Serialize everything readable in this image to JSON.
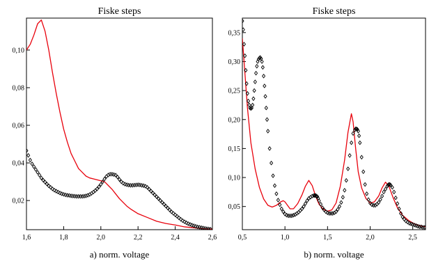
{
  "chart_data": [
    {
      "type": "line",
      "title": "Fiske steps",
      "xlabel": "a)   norm. voltage",
      "ylabel": "",
      "xlim": [
        1.6,
        2.6
      ],
      "ylim": [
        0.0045,
        0.117
      ],
      "xticks": [
        {
          "value": 1.6,
          "label": "1,6"
        },
        {
          "value": 1.8,
          "label": "1,8"
        },
        {
          "value": 2.0,
          "label": "2,0"
        },
        {
          "value": 2.2,
          "label": "2,2"
        },
        {
          "value": 2.4,
          "label": "2,4"
        },
        {
          "value": 2.6,
          "label": "2,6"
        }
      ],
      "yticks": [
        {
          "value": 0.02,
          "label": "0,02"
        },
        {
          "value": 0.04,
          "label": "0,04"
        },
        {
          "value": 0.06,
          "label": "0,06"
        },
        {
          "value": 0.08,
          "label": "0,08"
        },
        {
          "value": 0.1,
          "label": "0,10"
        }
      ],
      "series": [
        {
          "style": "line",
          "color": "#e8000b",
          "x": [
            1.6,
            1.62,
            1.64,
            1.66,
            1.68,
            1.7,
            1.72,
            1.74,
            1.76,
            1.78,
            1.8,
            1.82,
            1.84,
            1.86,
            1.88,
            1.9,
            1.92,
            1.94,
            1.96,
            1.98,
            2.0,
            2.02,
            2.04,
            2.06,
            2.08,
            2.1,
            2.12,
            2.14,
            2.16,
            2.2,
            2.25,
            2.3,
            2.35,
            2.4,
            2.45,
            2.5,
            2.55,
            2.6
          ],
          "y": [
            0.1,
            0.103,
            0.108,
            0.114,
            0.116,
            0.11,
            0.1,
            0.088,
            0.077,
            0.067,
            0.058,
            0.051,
            0.045,
            0.041,
            0.037,
            0.035,
            0.033,
            0.032,
            0.0315,
            0.031,
            0.0305,
            0.03,
            0.028,
            0.026,
            0.0235,
            0.021,
            0.019,
            0.017,
            0.0155,
            0.013,
            0.011,
            0.009,
            0.0078,
            0.007,
            0.006,
            0.0055,
            0.005,
            0.0048
          ]
        },
        {
          "style": "markers",
          "color": "#000000",
          "x": [
            1.6,
            1.61,
            1.62,
            1.63,
            1.64,
            1.65,
            1.66,
            1.67,
            1.68,
            1.69,
            1.7,
            1.71,
            1.72,
            1.73,
            1.74,
            1.75,
            1.76,
            1.77,
            1.78,
            1.79,
            1.8,
            1.81,
            1.82,
            1.83,
            1.84,
            1.85,
            1.86,
            1.87,
            1.88,
            1.89,
            1.9,
            1.91,
            1.92,
            1.93,
            1.94,
            1.95,
            1.96,
            1.97,
            1.98,
            1.99,
            2.0,
            2.01,
            2.02,
            2.03,
            2.04,
            2.05,
            2.06,
            2.07,
            2.08,
            2.09,
            2.1,
            2.11,
            2.12,
            2.13,
            2.14,
            2.15,
            2.16,
            2.17,
            2.18,
            2.19,
            2.2,
            2.21,
            2.22,
            2.23,
            2.24,
            2.25,
            2.26,
            2.27,
            2.28,
            2.29,
            2.3,
            2.31,
            2.32,
            2.33,
            2.34,
            2.35,
            2.36,
            2.37,
            2.38,
            2.39,
            2.4,
            2.41,
            2.42,
            2.43,
            2.44,
            2.45,
            2.46,
            2.47,
            2.48,
            2.49,
            2.5,
            2.51,
            2.52,
            2.53,
            2.54,
            2.55,
            2.56,
            2.57,
            2.58,
            2.59
          ],
          "y": [
            0.0465,
            0.044,
            0.0415,
            0.0395,
            0.038,
            0.0365,
            0.035,
            0.0335,
            0.032,
            0.0308,
            0.0298,
            0.0288,
            0.0278,
            0.027,
            0.0262,
            0.0255,
            0.025,
            0.0245,
            0.024,
            0.0236,
            0.0233,
            0.023,
            0.0228,
            0.0227,
            0.0225,
            0.0224,
            0.0223,
            0.0222,
            0.0222,
            0.0222,
            0.0222,
            0.0223,
            0.0225,
            0.0228,
            0.0232,
            0.0238,
            0.0245,
            0.0253,
            0.0262,
            0.0273,
            0.0286,
            0.03,
            0.0315,
            0.0328,
            0.0336,
            0.034,
            0.034,
            0.0338,
            0.0335,
            0.0325,
            0.0312,
            0.03,
            0.0292,
            0.0287,
            0.0284,
            0.0282,
            0.0281,
            0.0281,
            0.0282,
            0.0283,
            0.0284,
            0.0283,
            0.0281,
            0.0279,
            0.0276,
            0.027,
            0.026,
            0.025,
            0.024,
            0.023,
            0.022,
            0.021,
            0.02,
            0.019,
            0.018,
            0.017,
            0.016,
            0.015,
            0.014,
            0.0132,
            0.0124,
            0.0116,
            0.0108,
            0.01,
            0.0093,
            0.0087,
            0.0082,
            0.0077,
            0.0073,
            0.0069,
            0.0066,
            0.0063,
            0.006,
            0.0058,
            0.0056,
            0.0054,
            0.0052,
            0.005,
            0.0049,
            0.0048
          ]
        }
      ]
    },
    {
      "type": "line",
      "title": "Fiske steps",
      "xlabel": "b)   norm. voltage",
      "ylabel": "",
      "xlim": [
        0.5,
        2.65
      ],
      "ylim": [
        0.01,
        0.375
      ],
      "xticks": [
        {
          "value": 0.5,
          "label": "0,5"
        },
        {
          "value": 1.0,
          "label": "1,0"
        },
        {
          "value": 1.5,
          "label": "1,5"
        },
        {
          "value": 2.0,
          "label": "2,0"
        },
        {
          "value": 2.5,
          "label": "2,5"
        }
      ],
      "yticks": [
        {
          "value": 0.05,
          "label": "0,05"
        },
        {
          "value": 0.1,
          "label": "0,10"
        },
        {
          "value": 0.15,
          "label": "0,15"
        },
        {
          "value": 0.2,
          "label": "0,20"
        },
        {
          "value": 0.25,
          "label": "0,25"
        },
        {
          "value": 0.3,
          "label": "0,30"
        },
        {
          "value": 0.35,
          "label": "0,35"
        }
      ],
      "series": [
        {
          "style": "line",
          "color": "#e8000b",
          "x": [
            0.5,
            0.53,
            0.56,
            0.6,
            0.65,
            0.7,
            0.75,
            0.8,
            0.85,
            0.9,
            0.95,
            0.98,
            1.0,
            1.03,
            1.06,
            1.1,
            1.15,
            1.2,
            1.24,
            1.28,
            1.32,
            1.36,
            1.4,
            1.45,
            1.5,
            1.55,
            1.6,
            1.65,
            1.7,
            1.74,
            1.78,
            1.8,
            1.83,
            1.86,
            1.9,
            1.95,
            2.0,
            2.05,
            2.1,
            2.14,
            2.18,
            2.22,
            2.27,
            2.32,
            2.38,
            2.45,
            2.52,
            2.58,
            2.65
          ],
          "y": [
            0.34,
            0.28,
            0.22,
            0.16,
            0.115,
            0.083,
            0.063,
            0.052,
            0.049,
            0.052,
            0.058,
            0.06,
            0.058,
            0.052,
            0.046,
            0.046,
            0.055,
            0.07,
            0.085,
            0.095,
            0.086,
            0.068,
            0.054,
            0.045,
            0.042,
            0.044,
            0.056,
            0.085,
            0.13,
            0.178,
            0.21,
            0.196,
            0.15,
            0.11,
            0.082,
            0.064,
            0.056,
            0.058,
            0.068,
            0.082,
            0.092,
            0.085,
            0.065,
            0.048,
            0.035,
            0.026,
            0.02,
            0.017,
            0.015
          ]
        },
        {
          "style": "markers",
          "color": "#000000",
          "x": [
            0.5,
            0.51,
            0.52,
            0.53,
            0.54,
            0.55,
            0.56,
            0.57,
            0.58,
            0.59,
            0.6,
            0.61,
            0.62,
            0.63,
            0.64,
            0.65,
            0.66,
            0.67,
            0.68,
            0.69,
            0.7,
            0.71,
            0.72,
            0.73,
            0.74,
            0.75,
            0.76,
            0.77,
            0.78,
            0.79,
            0.8,
            0.82,
            0.84,
            0.86,
            0.88,
            0.9,
            0.92,
            0.94,
            0.96,
            0.98,
            1.0,
            1.02,
            1.04,
            1.06,
            1.08,
            1.1,
            1.12,
            1.14,
            1.16,
            1.18,
            1.2,
            1.22,
            1.24,
            1.26,
            1.28,
            1.3,
            1.32,
            1.34,
            1.35,
            1.36,
            1.37,
            1.38,
            1.39,
            1.4,
            1.42,
            1.44,
            1.46,
            1.48,
            1.5,
            1.52,
            1.54,
            1.56,
            1.58,
            1.6,
            1.62,
            1.64,
            1.66,
            1.68,
            1.7,
            1.72,
            1.74,
            1.76,
            1.78,
            1.8,
            1.82,
            1.83,
            1.84,
            1.85,
            1.86,
            1.87,
            1.88,
            1.9,
            1.92,
            1.94,
            1.96,
            1.98,
            2.0,
            2.02,
            2.04,
            2.06,
            2.08,
            2.1,
            2.12,
            2.14,
            2.16,
            2.18,
            2.2,
            2.21,
            2.22,
            2.23,
            2.24,
            2.26,
            2.28,
            2.3,
            2.32,
            2.34,
            2.36,
            2.38,
            2.4,
            2.42,
            2.44,
            2.46,
            2.48,
            2.5,
            2.52,
            2.54,
            2.56,
            2.58,
            2.6,
            2.62,
            2.64
          ],
          "y": [
            0.37,
            0.355,
            0.33,
            0.31,
            0.285,
            0.262,
            0.245,
            0.232,
            0.225,
            0.22,
            0.219,
            0.22,
            0.225,
            0.236,
            0.25,
            0.265,
            0.28,
            0.292,
            0.3,
            0.304,
            0.306,
            0.307,
            0.305,
            0.3,
            0.29,
            0.275,
            0.258,
            0.24,
            0.22,
            0.2,
            0.18,
            0.15,
            0.125,
            0.103,
            0.086,
            0.072,
            0.061,
            0.053,
            0.046,
            0.041,
            0.037,
            0.035,
            0.034,
            0.034,
            0.034,
            0.035,
            0.036,
            0.038,
            0.04,
            0.043,
            0.046,
            0.05,
            0.055,
            0.06,
            0.064,
            0.066,
            0.068,
            0.069,
            0.069,
            0.069,
            0.068,
            0.067,
            0.064,
            0.06,
            0.054,
            0.048,
            0.044,
            0.041,
            0.039,
            0.038,
            0.038,
            0.038,
            0.039,
            0.041,
            0.045,
            0.05,
            0.057,
            0.066,
            0.078,
            0.095,
            0.115,
            0.138,
            0.16,
            0.176,
            0.182,
            0.184,
            0.184,
            0.183,
            0.18,
            0.172,
            0.16,
            0.135,
            0.11,
            0.088,
            0.072,
            0.062,
            0.056,
            0.053,
            0.052,
            0.052,
            0.054,
            0.057,
            0.062,
            0.068,
            0.075,
            0.08,
            0.085,
            0.087,
            0.088,
            0.088,
            0.087,
            0.083,
            0.075,
            0.065,
            0.055,
            0.046,
            0.038,
            0.032,
            0.028,
            0.025,
            0.023,
            0.021,
            0.02,
            0.019,
            0.018,
            0.017,
            0.016,
            0.015,
            0.015,
            0.014,
            0.014
          ]
        }
      ]
    }
  ]
}
